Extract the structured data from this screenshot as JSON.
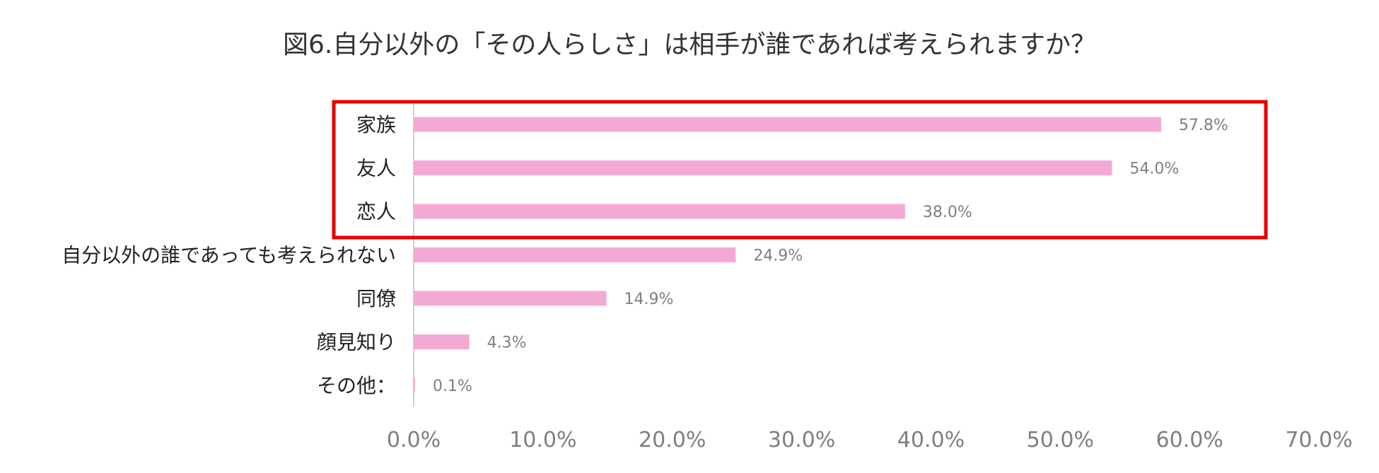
{
  "chart_data": {
    "type": "bar",
    "orientation": "horizontal",
    "title": "図6.自分以外の「その人らしさ」は相手が誰であれば考えられますか？",
    "categories": [
      "家族",
      "友人",
      "恋人",
      "自分以外の誰であっても考えられない",
      "同僚",
      "顔見知り",
      "その他："
    ],
    "values": [
      57.8,
      54.0,
      38.0,
      24.9,
      14.9,
      4.3,
      0.1
    ],
    "value_labels": [
      "57.8%",
      "54.0%",
      "38.0%",
      "24.9%",
      "14.9%",
      "4.3%",
      "0.1%"
    ],
    "xlim": [
      0,
      70
    ],
    "x_ticks": [
      0,
      10,
      20,
      30,
      40,
      50,
      60,
      70
    ],
    "x_tick_labels": [
      "0.0%",
      "10.0%",
      "20.0%",
      "30.0%",
      "40.0%",
      "50.0%",
      "60.0%",
      "70.0%"
    ],
    "grid": false,
    "legend": "none",
    "bar_color": "#f4a9d4",
    "highlight": {
      "categories": [
        "家族",
        "友人",
        "恋人"
      ],
      "color": "#e60000"
    }
  }
}
